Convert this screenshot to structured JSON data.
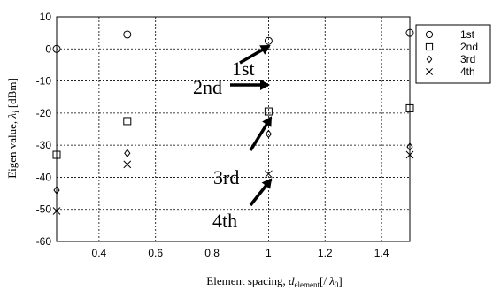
{
  "chart_data": {
    "type": "scatter",
    "xlabel": {
      "main": "Element spacing, ",
      "var": "d",
      "sub": "element",
      "tail1": "[/ ",
      "lam": "λ",
      "sub2": "0",
      "tail2": "]"
    },
    "ylabel": {
      "main": "Eigen value, ",
      "var": "λ",
      "sub": "i",
      "tail": " [dBm]"
    },
    "xlim": [
      0.25,
      1.5
    ],
    "ylim": [
      -60,
      10
    ],
    "xticks": [
      0.4,
      0.6,
      0.8,
      1,
      1.2,
      1.4
    ],
    "yticks": [
      10,
      0,
      -10,
      -20,
      -30,
      -40,
      -50,
      -60
    ],
    "grid": true,
    "legend_position": "right",
    "series": [
      {
        "name": "1st",
        "marker": "circle",
        "x": [
          0.25,
          0.5,
          1,
          1.5
        ],
        "values": [
          0,
          4.5,
          2.5,
          5
        ]
      },
      {
        "name": "2nd",
        "marker": "square",
        "x": [
          0.25,
          0.5,
          1,
          1.5
        ],
        "values": [
          -33,
          -22.5,
          -19.5,
          -18.5
        ]
      },
      {
        "name": "3rd",
        "marker": "diamond",
        "x": [
          0.25,
          0.5,
          1,
          1.5
        ],
        "values": [
          -44,
          -32.5,
          -26.5,
          -30.5
        ]
      },
      {
        "name": "4th",
        "marker": "cross",
        "x": [
          0.25,
          0.5,
          1,
          1.5
        ],
        "values": [
          -50.5,
          -36,
          -39,
          -33
        ]
      }
    ],
    "annotations": [
      {
        "text": "1st",
        "series": 0
      },
      {
        "text": "2nd",
        "series": 1
      },
      {
        "text": "3rd",
        "series": 2
      },
      {
        "text": "4th",
        "series": 3
      }
    ]
  }
}
